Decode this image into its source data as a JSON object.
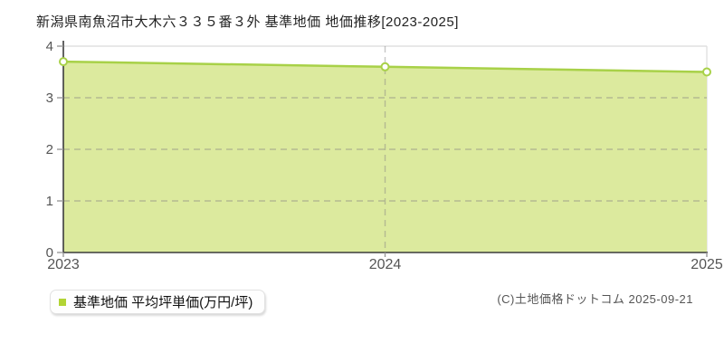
{
  "header": {
    "title": "新潟県南魚沼市大木六３３５番３外 基準地価 地価推移[2023-2025]"
  },
  "legend": {
    "label": "基準地価 平均坪単価(万円/坪)",
    "marker_color": "#b2d435"
  },
  "footer": {
    "copyright": "(C)土地価格ドットコム 2025-09-21"
  },
  "chart_data": {
    "type": "area",
    "title": "新潟県南魚沼市大木六３３５番３外 基準地価 地価推移[2023-2025]",
    "categories": [
      "2023",
      "2024",
      "2025"
    ],
    "series": [
      {
        "name": "基準地価 平均坪単価(万円/坪)",
        "values": [
          3.7,
          3.6,
          3.5
        ]
      }
    ],
    "xlabel": "",
    "ylabel": "万円/坪",
    "ylim": [
      0,
      4
    ],
    "yticks": [
      0,
      1,
      2,
      3,
      4
    ],
    "grid": true,
    "legend_position": "bottom-left",
    "colors": {
      "line": "#a8d148",
      "fill": "#dcea9e",
      "marker_fill": "#ffffff",
      "grid_dashed": "#808080",
      "grid_solid": "#e0e0e0",
      "axis": "#3c3c3c",
      "tick": "#999999",
      "tick_text": "#555555"
    }
  }
}
